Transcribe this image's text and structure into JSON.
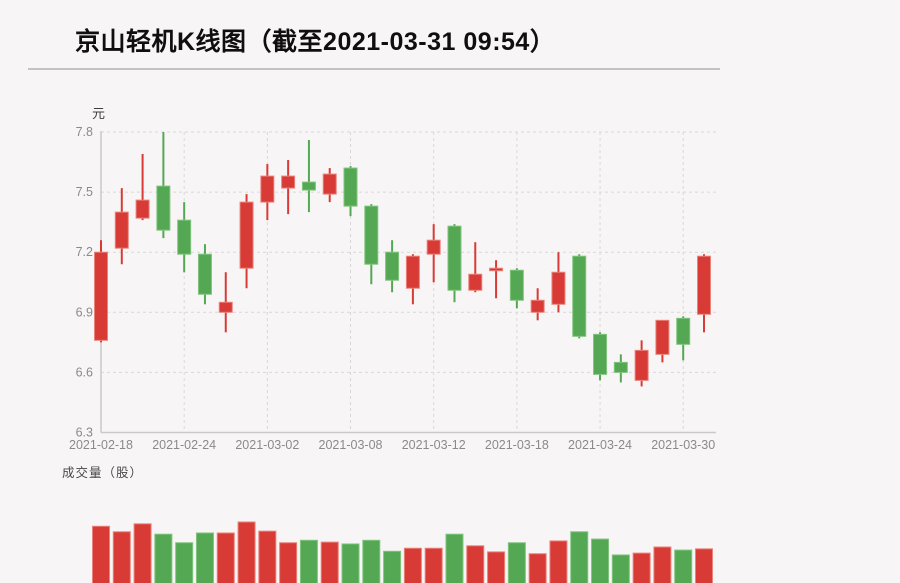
{
  "header": {
    "title": "京山轻机K线图（截至2021-03-31 09:54）"
  },
  "price_panel": {
    "unit_label": "元",
    "y_ticks": [
      7.8,
      7.5,
      7.2,
      6.9,
      6.6,
      6.3
    ],
    "x_tick_indices": [
      0,
      4,
      8,
      12,
      16,
      20,
      24,
      28
    ]
  },
  "volume_panel": {
    "label": "成交量（股）"
  },
  "colors": {
    "up": "#d83b36",
    "up_edge": "#e9837c",
    "down": "#54a853",
    "down_edge": "#82c47f",
    "background": "#f8f5f6",
    "grid": "#d8d8d8",
    "axis": "#c9c9c9",
    "tick_text": "#8a8a8a",
    "title_text": "#0f0f0f"
  },
  "chart_data": [
    {
      "type": "candlestick",
      "title": "京山轻机K线图（截至2021-03-31 09:54）",
      "ylabel": "元",
      "ylim": [
        6.3,
        7.8
      ],
      "y_ticks": [
        7.8,
        7.5,
        7.2,
        6.9,
        6.6,
        6.3
      ],
      "grid": "dashed",
      "x_tick_labels": [
        "2021-02-18",
        "2021-02-24",
        "2021-03-02",
        "2021-03-08",
        "2021-03-12",
        "2021-03-18",
        "2021-03-24",
        "2021-03-30"
      ],
      "x_tick_indices": [
        0,
        4,
        8,
        12,
        16,
        20,
        24,
        28
      ],
      "up_means": "close > open (red)",
      "candles": [
        {
          "date": "2021-02-18",
          "o": 6.76,
          "h": 7.26,
          "l": 6.75,
          "c": 7.2,
          "dir": "up"
        },
        {
          "date": "2021-02-19",
          "o": 7.22,
          "h": 7.52,
          "l": 7.14,
          "c": 7.4,
          "dir": "up"
        },
        {
          "date": "2021-02-22",
          "o": 7.37,
          "h": 7.69,
          "l": 7.36,
          "c": 7.46,
          "dir": "up"
        },
        {
          "date": "2021-02-23",
          "o": 7.53,
          "h": 7.8,
          "l": 7.27,
          "c": 7.31,
          "dir": "down"
        },
        {
          "date": "2021-02-24",
          "o": 7.36,
          "h": 7.45,
          "l": 7.1,
          "c": 7.19,
          "dir": "down"
        },
        {
          "date": "2021-02-25",
          "o": 7.19,
          "h": 7.24,
          "l": 6.94,
          "c": 6.99,
          "dir": "down"
        },
        {
          "date": "2021-02-26",
          "o": 6.9,
          "h": 7.1,
          "l": 6.8,
          "c": 6.95,
          "dir": "up"
        },
        {
          "date": "2021-03-01",
          "o": 7.12,
          "h": 7.49,
          "l": 7.02,
          "c": 7.45,
          "dir": "up"
        },
        {
          "date": "2021-03-02",
          "o": 7.45,
          "h": 7.64,
          "l": 7.36,
          "c": 7.58,
          "dir": "up"
        },
        {
          "date": "2021-03-03",
          "o": 7.52,
          "h": 7.66,
          "l": 7.39,
          "c": 7.58,
          "dir": "up"
        },
        {
          "date": "2021-03-04",
          "o": 7.55,
          "h": 7.76,
          "l": 7.4,
          "c": 7.51,
          "dir": "down"
        },
        {
          "date": "2021-03-05",
          "o": 7.49,
          "h": 7.62,
          "l": 7.45,
          "c": 7.59,
          "dir": "up"
        },
        {
          "date": "2021-03-08",
          "o": 7.62,
          "h": 7.63,
          "l": 7.38,
          "c": 7.43,
          "dir": "down"
        },
        {
          "date": "2021-03-09",
          "o": 7.43,
          "h": 7.44,
          "l": 7.04,
          "c": 7.14,
          "dir": "down"
        },
        {
          "date": "2021-03-10",
          "o": 7.2,
          "h": 7.26,
          "l": 7.0,
          "c": 7.06,
          "dir": "down"
        },
        {
          "date": "2021-03-11",
          "o": 7.02,
          "h": 7.19,
          "l": 6.94,
          "c": 7.18,
          "dir": "up"
        },
        {
          "date": "2021-03-12",
          "o": 7.19,
          "h": 7.34,
          "l": 7.05,
          "c": 7.26,
          "dir": "up"
        },
        {
          "date": "2021-03-15",
          "o": 7.33,
          "h": 7.34,
          "l": 6.95,
          "c": 7.01,
          "dir": "down"
        },
        {
          "date": "2021-03-16",
          "o": 7.01,
          "h": 7.25,
          "l": 7.0,
          "c": 7.09,
          "dir": "up"
        },
        {
          "date": "2021-03-17",
          "o": 7.11,
          "h": 7.16,
          "l": 6.97,
          "c": 7.12,
          "dir": "up"
        },
        {
          "date": "2021-03-18",
          "o": 7.11,
          "h": 7.12,
          "l": 6.92,
          "c": 6.96,
          "dir": "down"
        },
        {
          "date": "2021-03-19",
          "o": 6.9,
          "h": 7.02,
          "l": 6.86,
          "c": 6.96,
          "dir": "up"
        },
        {
          "date": "2021-03-22",
          "o": 6.94,
          "h": 7.2,
          "l": 6.9,
          "c": 7.1,
          "dir": "up"
        },
        {
          "date": "2021-03-23",
          "o": 7.18,
          "h": 7.19,
          "l": 6.77,
          "c": 6.78,
          "dir": "down"
        },
        {
          "date": "2021-03-24",
          "o": 6.79,
          "h": 6.8,
          "l": 6.56,
          "c": 6.59,
          "dir": "down"
        },
        {
          "date": "2021-03-25",
          "o": 6.65,
          "h": 6.69,
          "l": 6.55,
          "c": 6.6,
          "dir": "down"
        },
        {
          "date": "2021-03-26",
          "o": 6.56,
          "h": 6.76,
          "l": 6.53,
          "c": 6.71,
          "dir": "up"
        },
        {
          "date": "2021-03-29",
          "o": 6.69,
          "h": 6.86,
          "l": 6.65,
          "c": 6.86,
          "dir": "up"
        },
        {
          "date": "2021-03-30",
          "o": 6.87,
          "h": 6.88,
          "l": 6.66,
          "c": 6.74,
          "dir": "down"
        },
        {
          "date": "2021-03-31",
          "o": 6.89,
          "h": 7.19,
          "l": 6.8,
          "c": 7.18,
          "dir": "up"
        }
      ]
    },
    {
      "type": "bar",
      "title": "成交量（股）",
      "note": "volume panel is cropped at the bottom of the screenshot; values are relative heights (max = 100), bar color follows candle direction",
      "categories": [
        "2021-02-18",
        "2021-02-19",
        "2021-02-22",
        "2021-02-23",
        "2021-02-24",
        "2021-02-25",
        "2021-02-26",
        "2021-03-01",
        "2021-03-02",
        "2021-03-03",
        "2021-03-04",
        "2021-03-05",
        "2021-03-08",
        "2021-03-09",
        "2021-03-10",
        "2021-03-11",
        "2021-03-12",
        "2021-03-15",
        "2021-03-16",
        "2021-03-17",
        "2021-03-18",
        "2021-03-19",
        "2021-03-22",
        "2021-03-23",
        "2021-03-24",
        "2021-03-25",
        "2021-03-26",
        "2021-03-29",
        "2021-03-30",
        "2021-03-31"
      ],
      "values_rel": [
        93,
        84,
        97,
        80,
        66,
        82,
        82,
        100,
        85,
        66,
        70,
        67,
        64,
        70,
        52,
        57,
        57,
        80,
        61,
        51,
        66,
        48,
        69,
        84,
        72,
        46,
        49,
        59,
        54,
        56
      ]
    }
  ]
}
